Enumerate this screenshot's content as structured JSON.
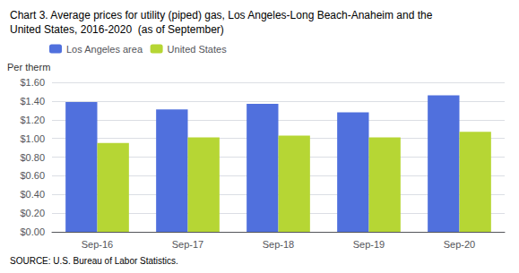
{
  "chart_data": {
    "type": "bar",
    "title": "Chart 3. Average prices for utility (piped) gas, Los Angeles-Long Beach-Anaheim and the\nUnited States, 2016-2020  (as of September)",
    "ylabel": "Per therm",
    "source": "SOURCE: U.S. Bureau of Labor Statistics.",
    "categories": [
      "Sep-16",
      "Sep-17",
      "Sep-18",
      "Sep-19",
      "Sep-20"
    ],
    "series": [
      {
        "name": "Los Angeles area",
        "values": [
          1.39,
          1.31,
          1.37,
          1.28,
          1.46
        ]
      },
      {
        "name": "United States",
        "values": [
          0.95,
          1.01,
          1.03,
          1.01,
          1.07
        ]
      }
    ],
    "ylim": [
      0,
      1.6
    ],
    "yticks": [
      {
        "value": 0.0,
        "label": "$0.00"
      },
      {
        "value": 0.2,
        "label": "$0.20"
      },
      {
        "value": 0.4,
        "label": "$0.40"
      },
      {
        "value": 0.6,
        "label": "$0.60"
      },
      {
        "value": 0.8,
        "label": "$0.80"
      },
      {
        "value": 1.0,
        "label": "$1.00"
      },
      {
        "value": 1.2,
        "label": "$1.20"
      },
      {
        "value": 1.4,
        "label": "$1.40"
      },
      {
        "value": 1.6,
        "label": "$1.60"
      }
    ],
    "grid": true,
    "legend": "top"
  }
}
